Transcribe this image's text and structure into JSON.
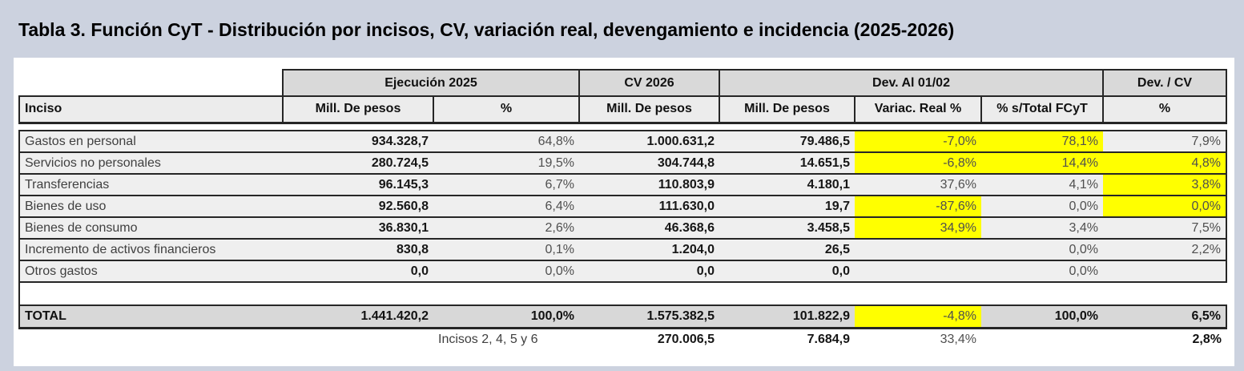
{
  "title": "Tabla 3. Función CyT - Distribución por incisos, CV, variación real, devengamiento e incidencia (2025-2026)",
  "table": {
    "groups": [
      "Ejecución 2025",
      "CV 2026",
      "Dev. Al 01/02",
      "Dev. / CV"
    ],
    "columns": [
      "Inciso",
      "Mill. De pesos",
      "%",
      "Mill. De pesos",
      "Mill. De pesos",
      "Variac. Real %",
      "% s/Total FCyT",
      "%"
    ],
    "bold_columns": [
      1,
      3,
      4
    ],
    "rows": [
      {
        "cells": [
          "Gastos en personal",
          "934.328,7",
          "64,8%",
          "1.000.631,2",
          "79.486,5",
          "-7,0%",
          "78,1%",
          "7,9%"
        ],
        "yellow": [
          5,
          6
        ]
      },
      {
        "cells": [
          "Servicios no personales",
          "280.724,5",
          "19,5%",
          "304.744,8",
          "14.651,5",
          "-6,8%",
          "14,4%",
          "4,8%"
        ],
        "yellow": [
          5,
          6,
          7
        ]
      },
      {
        "cells": [
          "Transferencias",
          "96.145,3",
          "6,7%",
          "110.803,9",
          "4.180,1",
          "37,6%",
          "4,1%",
          "3,8%"
        ],
        "yellow": [
          7
        ]
      },
      {
        "cells": [
          "Bienes de uso",
          "92.560,8",
          "6,4%",
          "111.630,0",
          "19,7",
          "-87,6%",
          "0,0%",
          "0,0%"
        ],
        "yellow": [
          5,
          7
        ]
      },
      {
        "cells": [
          "Bienes de consumo",
          "36.830,1",
          "2,6%",
          "46.368,6",
          "3.458,5",
          "34,9%",
          "3,4%",
          "7,5%"
        ],
        "yellow": [
          5
        ]
      },
      {
        "cells": [
          "Incremento de activos financieros",
          "830,8",
          "0,1%",
          "1.204,0",
          "26,5",
          "",
          "0,0%",
          "2,2%"
        ],
        "yellow": []
      },
      {
        "cells": [
          "Otros gastos",
          "0,0",
          "0,0%",
          "0,0",
          "0,0",
          "",
          "0,0%",
          ""
        ],
        "yellow": []
      }
    ],
    "total": {
      "cells": [
        "TOTAL",
        "1.441.420,2",
        "100,0%",
        "1.575.382,5",
        "101.822,9",
        "-4,8%",
        "100,0%",
        "6,5%"
      ],
      "yellow": [
        5
      ]
    },
    "footer": {
      "cells": [
        "",
        "",
        "Incisos 2, 4, 5 y 6",
        "270.006,5",
        "7.684,9",
        "33,4%",
        "",
        "2,8%"
      ]
    }
  },
  "colors": {
    "page_background": "#ccd2df",
    "panel_background": "#ffffff",
    "header_fill": "#d9d9d9",
    "subheader_fill": "#ececec",
    "row_fill": "#efefef",
    "total_fill": "#d8d8d8",
    "highlight": "#ffff00",
    "border": "#262626"
  }
}
